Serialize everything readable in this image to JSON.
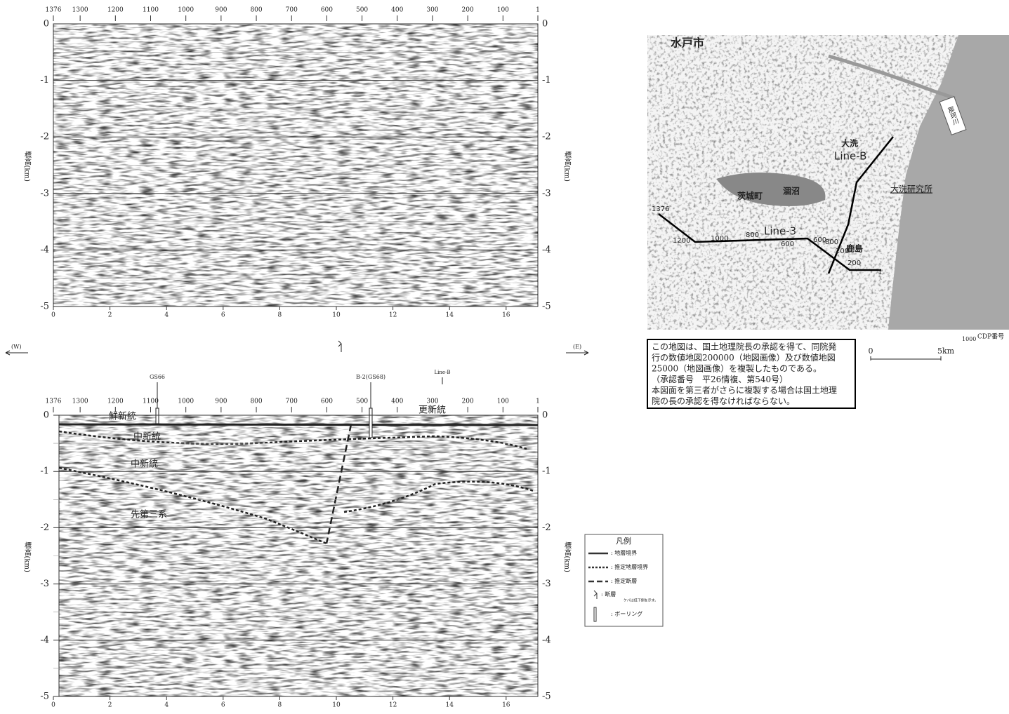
{
  "axes": {
    "cdp_ticks": [
      1376,
      1300,
      1200,
      1100,
      1000,
      900,
      800,
      700,
      600,
      500,
      400,
      300,
      200,
      100,
      1
    ],
    "depth_ticks": [
      0,
      -1,
      -2,
      -3,
      -4,
      -5
    ],
    "distance_ticks": [
      0,
      2,
      4,
      6,
      8,
      10,
      12,
      14,
      16
    ],
    "axis_label": "標高(km)"
  },
  "direction": {
    "west": "(W)",
    "east": "(E)"
  },
  "annotations": {
    "boreholes": [
      "GS66",
      "B-2(GS68)"
    ],
    "line_b": "Line-B",
    "units": [
      "鮮新統",
      "更新統",
      "中新統",
      "中新統",
      "先第三系"
    ]
  },
  "legend": {
    "title": "凡例",
    "items": [
      ": 地層境界",
      ": 推定地層境界",
      ": 推定断層",
      ": 断層",
      ": ボーリング"
    ],
    "fault_note": "ケバは低下側を示す。"
  },
  "map": {
    "labels": [
      "水戸市",
      "Line-B",
      "Line-3",
      "大洗研究所",
      "那珂川",
      "涸沼",
      "大洗",
      "鹿島",
      "茨城町"
    ],
    "cdp_labels": [
      "1376",
      "1200",
      "1000",
      "800",
      "600",
      "600",
      "800",
      "200",
      "200",
      "1"
    ]
  },
  "caption": [
    "この地図は、国土地理院長の承認を得て、同院発",
    "行の数値地図200000（地図画像）及び数値地図",
    "25000（地図画像）を複製したものである。",
    "（承認番号　平26情複、第540号）",
    "本図面を第三者がさらに複製する場合は国土地理",
    "院の長の承認を得なければならない。"
  ],
  "scale": {
    "start": "0",
    "end": "5km"
  },
  "cdp_key": {
    "number": "1000",
    "label": "CDP番号"
  }
}
